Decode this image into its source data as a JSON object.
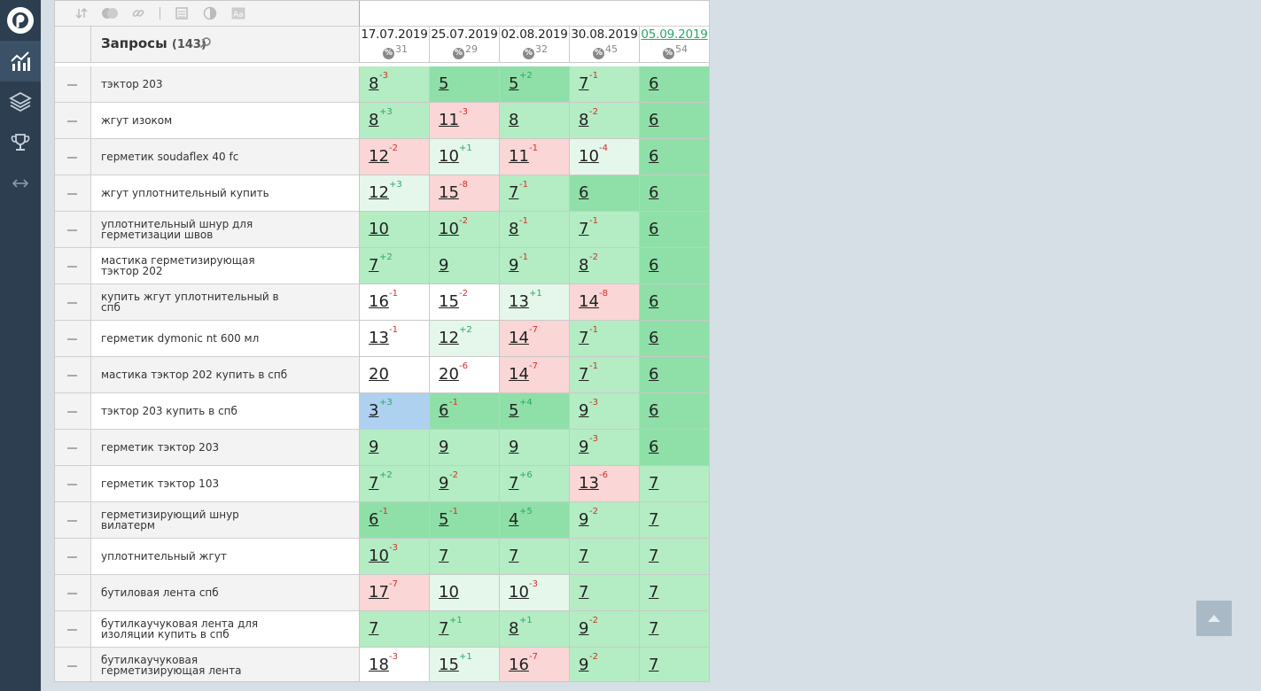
{
  "nav": {
    "icons": [
      "logo-icon",
      "chart-icon",
      "layers-icon",
      "trophy-icon",
      "expand-horizontal-icon"
    ]
  },
  "toolbar": {
    "icons": [
      "sort-icon",
      "toggle-icon",
      "link-icon",
      "table-icon",
      "contrast-icon",
      "font-icon"
    ]
  },
  "header": {
    "queries_label": "Запросы",
    "queries_count": "(143)"
  },
  "dates": [
    {
      "label": "17.07.2019",
      "pct_symbol": "%",
      "pct": "31",
      "link": false
    },
    {
      "label": "25.07.2019",
      "pct_symbol": "%",
      "pct": "29",
      "link": false
    },
    {
      "label": "02.08.2019",
      "pct_symbol": "%",
      "pct": "32",
      "link": false
    },
    {
      "label": "30.08.2019",
      "pct_symbol": "%",
      "pct": "45",
      "link": false
    },
    {
      "label": "05.09.2019",
      "pct_symbol": "%",
      "pct": "54",
      "link": true
    }
  ],
  "rows": [
    {
      "keyword": "тэктор 203",
      "cells": [
        {
          "pos": "8",
          "chg": "-3",
          "dir": "down",
          "bg": "mid"
        },
        {
          "pos": "5",
          "chg": "",
          "dir": "",
          "bg": "dark"
        },
        {
          "pos": "5",
          "chg": "+2",
          "dir": "up",
          "bg": "dark"
        },
        {
          "pos": "7",
          "chg": "-1",
          "dir": "down",
          "bg": "mid"
        },
        {
          "pos": "6",
          "chg": "",
          "dir": "",
          "bg": "dark"
        }
      ]
    },
    {
      "keyword": "жгут изоком",
      "cells": [
        {
          "pos": "8",
          "chg": "+3",
          "dir": "up",
          "bg": "mid"
        },
        {
          "pos": "11",
          "chg": "-3",
          "dir": "down",
          "bg": "red"
        },
        {
          "pos": "8",
          "chg": "",
          "dir": "",
          "bg": "mid"
        },
        {
          "pos": "8",
          "chg": "-2",
          "dir": "down",
          "bg": "mid"
        },
        {
          "pos": "6",
          "chg": "",
          "dir": "",
          "bg": "dark"
        }
      ]
    },
    {
      "keyword": "герметик soudaflex 40 fc",
      "cells": [
        {
          "pos": "12",
          "chg": "-2",
          "dir": "down",
          "bg": "red"
        },
        {
          "pos": "10",
          "chg": "+1",
          "dir": "up",
          "bg": "light"
        },
        {
          "pos": "11",
          "chg": "-1",
          "dir": "down",
          "bg": "red"
        },
        {
          "pos": "10",
          "chg": "-4",
          "dir": "down",
          "bg": "light"
        },
        {
          "pos": "6",
          "chg": "",
          "dir": "",
          "bg": "dark"
        }
      ]
    },
    {
      "keyword": "жгут уплотнительный купить",
      "cells": [
        {
          "pos": "12",
          "chg": "+3",
          "dir": "up",
          "bg": "light"
        },
        {
          "pos": "15",
          "chg": "-8",
          "dir": "down",
          "bg": "red"
        },
        {
          "pos": "7",
          "chg": "-1",
          "dir": "down",
          "bg": "mid"
        },
        {
          "pos": "6",
          "chg": "",
          "dir": "",
          "bg": "dark"
        },
        {
          "pos": "6",
          "chg": "",
          "dir": "",
          "bg": "dark"
        }
      ]
    },
    {
      "keyword": "уплотнительный шнур для герметизации швов",
      "cells": [
        {
          "pos": "10",
          "chg": "",
          "dir": "",
          "bg": "mid"
        },
        {
          "pos": "10",
          "chg": "-2",
          "dir": "down",
          "bg": "mid"
        },
        {
          "pos": "8",
          "chg": "-1",
          "dir": "down",
          "bg": "mid"
        },
        {
          "pos": "7",
          "chg": "-1",
          "dir": "down",
          "bg": "mid"
        },
        {
          "pos": "6",
          "chg": "",
          "dir": "",
          "bg": "dark"
        }
      ]
    },
    {
      "keyword": "мастика герметизирующая тэктор 202",
      "cells": [
        {
          "pos": "7",
          "chg": "+2",
          "dir": "up",
          "bg": "mid"
        },
        {
          "pos": "9",
          "chg": "",
          "dir": "",
          "bg": "mid"
        },
        {
          "pos": "9",
          "chg": "-1",
          "dir": "down",
          "bg": "mid"
        },
        {
          "pos": "8",
          "chg": "-2",
          "dir": "down",
          "bg": "mid"
        },
        {
          "pos": "6",
          "chg": "",
          "dir": "",
          "bg": "dark"
        }
      ]
    },
    {
      "keyword": "купить жгут уплотнительный в спб",
      "cells": [
        {
          "pos": "16",
          "chg": "-1",
          "dir": "down",
          "bg": "white"
        },
        {
          "pos": "15",
          "chg": "-2",
          "dir": "down",
          "bg": "white"
        },
        {
          "pos": "13",
          "chg": "+1",
          "dir": "up",
          "bg": "light"
        },
        {
          "pos": "14",
          "chg": "-8",
          "dir": "down",
          "bg": "red"
        },
        {
          "pos": "6",
          "chg": "",
          "dir": "",
          "bg": "dark"
        }
      ]
    },
    {
      "keyword": "герметик dymonic nt 600 мл",
      "cells": [
        {
          "pos": "13",
          "chg": "-1",
          "dir": "down",
          "bg": "white"
        },
        {
          "pos": "12",
          "chg": "+2",
          "dir": "up",
          "bg": "light"
        },
        {
          "pos": "14",
          "chg": "-7",
          "dir": "down",
          "bg": "red"
        },
        {
          "pos": "7",
          "chg": "-1",
          "dir": "down",
          "bg": "mid"
        },
        {
          "pos": "6",
          "chg": "",
          "dir": "",
          "bg": "dark"
        }
      ]
    },
    {
      "keyword": "мастика тэктор 202 купить в спб",
      "cells": [
        {
          "pos": "20",
          "chg": "",
          "dir": "",
          "bg": "white"
        },
        {
          "pos": "20",
          "chg": "-6",
          "dir": "down",
          "bg": "white"
        },
        {
          "pos": "14",
          "chg": "-7",
          "dir": "down",
          "bg": "red"
        },
        {
          "pos": "7",
          "chg": "-1",
          "dir": "down",
          "bg": "mid"
        },
        {
          "pos": "6",
          "chg": "",
          "dir": "",
          "bg": "dark"
        }
      ]
    },
    {
      "keyword": "тэктор 203 купить в спб",
      "cells": [
        {
          "pos": "3",
          "chg": "+3",
          "dir": "up",
          "bg": "blue"
        },
        {
          "pos": "6",
          "chg": "-1",
          "dir": "down",
          "bg": "dark"
        },
        {
          "pos": "5",
          "chg": "+4",
          "dir": "up",
          "bg": "dark"
        },
        {
          "pos": "9",
          "chg": "-3",
          "dir": "down",
          "bg": "mid"
        },
        {
          "pos": "6",
          "chg": "",
          "dir": "",
          "bg": "dark"
        }
      ]
    },
    {
      "keyword": "герметик тэктор 203",
      "cells": [
        {
          "pos": "9",
          "chg": "",
          "dir": "",
          "bg": "mid"
        },
        {
          "pos": "9",
          "chg": "",
          "dir": "",
          "bg": "mid"
        },
        {
          "pos": "9",
          "chg": "",
          "dir": "",
          "bg": "mid"
        },
        {
          "pos": "9",
          "chg": "-3",
          "dir": "down",
          "bg": "mid"
        },
        {
          "pos": "6",
          "chg": "",
          "dir": "",
          "bg": "dark"
        }
      ]
    },
    {
      "keyword": "герметик тэктор 103",
      "cells": [
        {
          "pos": "7",
          "chg": "+2",
          "dir": "up",
          "bg": "mid"
        },
        {
          "pos": "9",
          "chg": "-2",
          "dir": "down",
          "bg": "mid"
        },
        {
          "pos": "7",
          "chg": "+6",
          "dir": "up",
          "bg": "mid"
        },
        {
          "pos": "13",
          "chg": "-6",
          "dir": "down",
          "bg": "red"
        },
        {
          "pos": "7",
          "chg": "",
          "dir": "",
          "bg": "mid"
        }
      ]
    },
    {
      "keyword": "герметизирующий шнур вилатерм",
      "cells": [
        {
          "pos": "6",
          "chg": "-1",
          "dir": "down",
          "bg": "dark"
        },
        {
          "pos": "5",
          "chg": "-1",
          "dir": "down",
          "bg": "dark"
        },
        {
          "pos": "4",
          "chg": "+5",
          "dir": "up",
          "bg": "dark"
        },
        {
          "pos": "9",
          "chg": "-2",
          "dir": "down",
          "bg": "mid"
        },
        {
          "pos": "7",
          "chg": "",
          "dir": "",
          "bg": "mid"
        }
      ]
    },
    {
      "keyword": "уплотнительный жгут",
      "cells": [
        {
          "pos": "10",
          "chg": "-3",
          "dir": "down",
          "bg": "mid"
        },
        {
          "pos": "7",
          "chg": "",
          "dir": "",
          "bg": "mid"
        },
        {
          "pos": "7",
          "chg": "",
          "dir": "",
          "bg": "mid"
        },
        {
          "pos": "7",
          "chg": "",
          "dir": "",
          "bg": "mid"
        },
        {
          "pos": "7",
          "chg": "",
          "dir": "",
          "bg": "mid"
        }
      ]
    },
    {
      "keyword": "бутиловая лента спб",
      "cells": [
        {
          "pos": "17",
          "chg": "-7",
          "dir": "down",
          "bg": "red"
        },
        {
          "pos": "10",
          "chg": "",
          "dir": "",
          "bg": "light"
        },
        {
          "pos": "10",
          "chg": "-3",
          "dir": "down",
          "bg": "light"
        },
        {
          "pos": "7",
          "chg": "",
          "dir": "",
          "bg": "mid"
        },
        {
          "pos": "7",
          "chg": "",
          "dir": "",
          "bg": "mid"
        }
      ]
    },
    {
      "keyword": "бутилкаучуковая лента для изоляции купить в спб",
      "cells": [
        {
          "pos": "7",
          "chg": "",
          "dir": "",
          "bg": "mid"
        },
        {
          "pos": "7",
          "chg": "+1",
          "dir": "up",
          "bg": "mid"
        },
        {
          "pos": "8",
          "chg": "+1",
          "dir": "up",
          "bg": "mid"
        },
        {
          "pos": "9",
          "chg": "-2",
          "dir": "down",
          "bg": "mid"
        },
        {
          "pos": "7",
          "chg": "",
          "dir": "",
          "bg": "mid"
        }
      ]
    },
    {
      "keyword": "бутилкаучуковая герметизирующая лента",
      "cells": [
        {
          "pos": "18",
          "chg": "-3",
          "dir": "down",
          "bg": "white"
        },
        {
          "pos": "15",
          "chg": "+1",
          "dir": "up",
          "bg": "light"
        },
        {
          "pos": "16",
          "chg": "-7",
          "dir": "down",
          "bg": "red"
        },
        {
          "pos": "9",
          "chg": "-2",
          "dir": "down",
          "bg": "mid"
        },
        {
          "pos": "7",
          "chg": "",
          "dir": "",
          "bg": "mid"
        }
      ]
    }
  ],
  "colors": {
    "nav_bg": "#2c3e50",
    "up": "#2aa864",
    "down": "#d0302a",
    "dark_green": "#8fe0a8",
    "mid_green": "#b4ecc4",
    "light_green": "#e5f7ea",
    "red": "#fad6d6",
    "blue": "#aed1f0"
  }
}
